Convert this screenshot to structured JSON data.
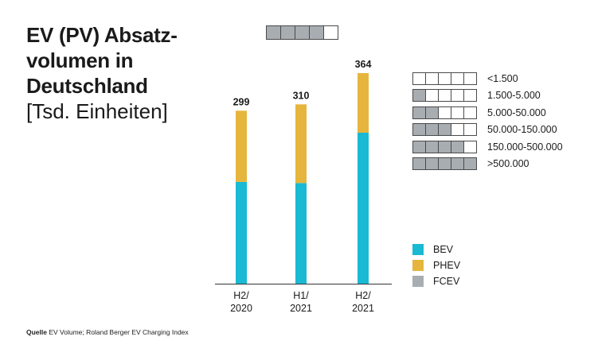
{
  "title": {
    "bold": "EV (PV) Absatz-volumen in Deutschland",
    "bold_lines": [
      "EV (PV) Absatz-",
      "volumen in",
      "Deutschland"
    ],
    "unit": "[Tsd. Einheiten]"
  },
  "top_scale": {
    "filled": 4,
    "total": 5
  },
  "scale_legend": [
    {
      "label": "<1.500",
      "filled": 0
    },
    {
      "label": "1.500-5.000",
      "filled": 1
    },
    {
      "label": "5.000-50.000",
      "filled": 2
    },
    {
      "label": "50.000-150.000",
      "filled": 3
    },
    {
      "label": "150.000-500.000",
      "filled": 4
    },
    {
      "label": ">500.000",
      "filled": 5
    }
  ],
  "source": {
    "label": "Quelle",
    "text": "EV Volume; Roland Berger EV Charging Index"
  },
  "chart_data": {
    "type": "bar",
    "stacked": true,
    "categories": [
      "H2/ 2020",
      "H1/ 2021",
      "H2/ 2021"
    ],
    "category_lines": [
      [
        "H2/",
        "2020"
      ],
      [
        "H1/",
        "2021"
      ],
      [
        "H2/",
        "2021"
      ]
    ],
    "series": [
      {
        "name": "BEV",
        "color": "#1ab9d4",
        "values": [
          176,
          174,
          261
        ]
      },
      {
        "name": "PHEV",
        "color": "#e6b53d",
        "values": [
          123,
          136,
          103
        ]
      },
      {
        "name": "FCEV",
        "color": "#a8adb2",
        "values": [
          0,
          0,
          0
        ]
      }
    ],
    "totals": [
      "299",
      "310",
      "364"
    ],
    "ylim": [
      0,
      400
    ],
    "grid": false,
    "legend_position": "right"
  }
}
